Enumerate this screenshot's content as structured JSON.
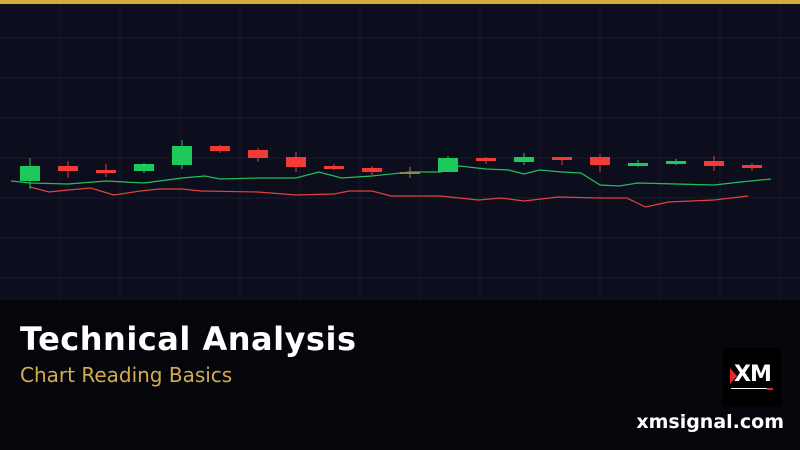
{
  "chart_data": {
    "type": "candlestick",
    "title": "",
    "xlabel": "",
    "ylabel": "",
    "grid": true,
    "colors": {
      "up": "#1ec95c",
      "down": "#f23b35",
      "neutral": "#8a8a4a",
      "line_upper": "#22c05a",
      "line_lower": "#e0443c"
    },
    "candles": [
      {
        "open": 119,
        "high": 142,
        "low": 111,
        "close": 134
      },
      {
        "open": 134,
        "high": 139,
        "low": 122,
        "close": 129
      },
      {
        "open": 130,
        "high": 136,
        "low": 123,
        "close": 127
      },
      {
        "open": 129,
        "high": 137,
        "low": 127,
        "close": 136
      },
      {
        "open": 135,
        "high": 160,
        "low": 131,
        "close": 154
      },
      {
        "open": 154,
        "high": 155,
        "low": 147,
        "close": 149
      },
      {
        "open": 150,
        "high": 152,
        "low": 138,
        "close": 142
      },
      {
        "open": 143,
        "high": 148,
        "low": 128,
        "close": 133
      },
      {
        "open": 134,
        "high": 136,
        "low": 130,
        "close": 131
      },
      {
        "open": 132,
        "high": 134,
        "low": 125,
        "close": 128
      },
      {
        "open": 128,
        "high": 133,
        "low": 122,
        "close": 128
      },
      {
        "open": 128,
        "high": 144,
        "low": 128,
        "close": 142
      },
      {
        "open": 142,
        "high": 143,
        "low": 136,
        "close": 139
      },
      {
        "open": 138,
        "high": 147,
        "low": 135,
        "close": 143
      },
      {
        "open": 143,
        "high": 143,
        "low": 135,
        "close": 140
      },
      {
        "open": 143,
        "high": 146,
        "low": 128,
        "close": 135
      },
      {
        "open": 134,
        "high": 140,
        "low": 133,
        "close": 137
      },
      {
        "open": 136,
        "high": 141,
        "low": 135,
        "close": 139
      },
      {
        "open": 139,
        "high": 144,
        "low": 129,
        "close": 134
      },
      {
        "open": 135,
        "high": 137,
        "low": 129,
        "close": 132
      }
    ],
    "lines": [
      {
        "role": "upper",
        "x": [
          -0.5,
          0,
          1,
          2,
          3,
          4,
          4.6,
          5,
          6,
          7,
          7.6,
          8.2,
          9,
          10,
          10.8,
          11.3,
          12,
          12.6,
          13,
          13.4,
          14,
          14.5,
          15,
          15.5,
          16,
          17,
          18,
          18.7,
          19.5
        ],
        "y": [
          119,
          117,
          116,
          119,
          117,
          122,
          124,
          121,
          122,
          122,
          128,
          122,
          124,
          128,
          128,
          134,
          131,
          130,
          126,
          130,
          128,
          127,
          115,
          114,
          117,
          116,
          115,
          118,
          121
        ]
      },
      {
        "role": "lower",
        "x": [
          0,
          0.5,
          1,
          1.6,
          2.2,
          2.9,
          3.4,
          4,
          4.5,
          6,
          7,
          8,
          8.4,
          9,
          9.5,
          10.8,
          11.8,
          12.4,
          13,
          13.9,
          15,
          15.7,
          16.2,
          16.8,
          18,
          18.9
        ],
        "y": [
          113,
          108,
          110,
          112,
          105,
          109,
          111,
          111,
          109,
          108,
          105,
          106,
          109,
          109,
          104,
          104,
          100,
          102,
          99,
          103,
          102,
          102,
          93,
          98,
          100,
          104
        ]
      }
    ]
  },
  "header": {
    "accent_color": "#d4ac3c"
  },
  "footer": {
    "title": "Technical Analysis",
    "subtitle": "Chart Reading Basics",
    "logo_text": "XM",
    "domain": "xmsignal.com"
  }
}
